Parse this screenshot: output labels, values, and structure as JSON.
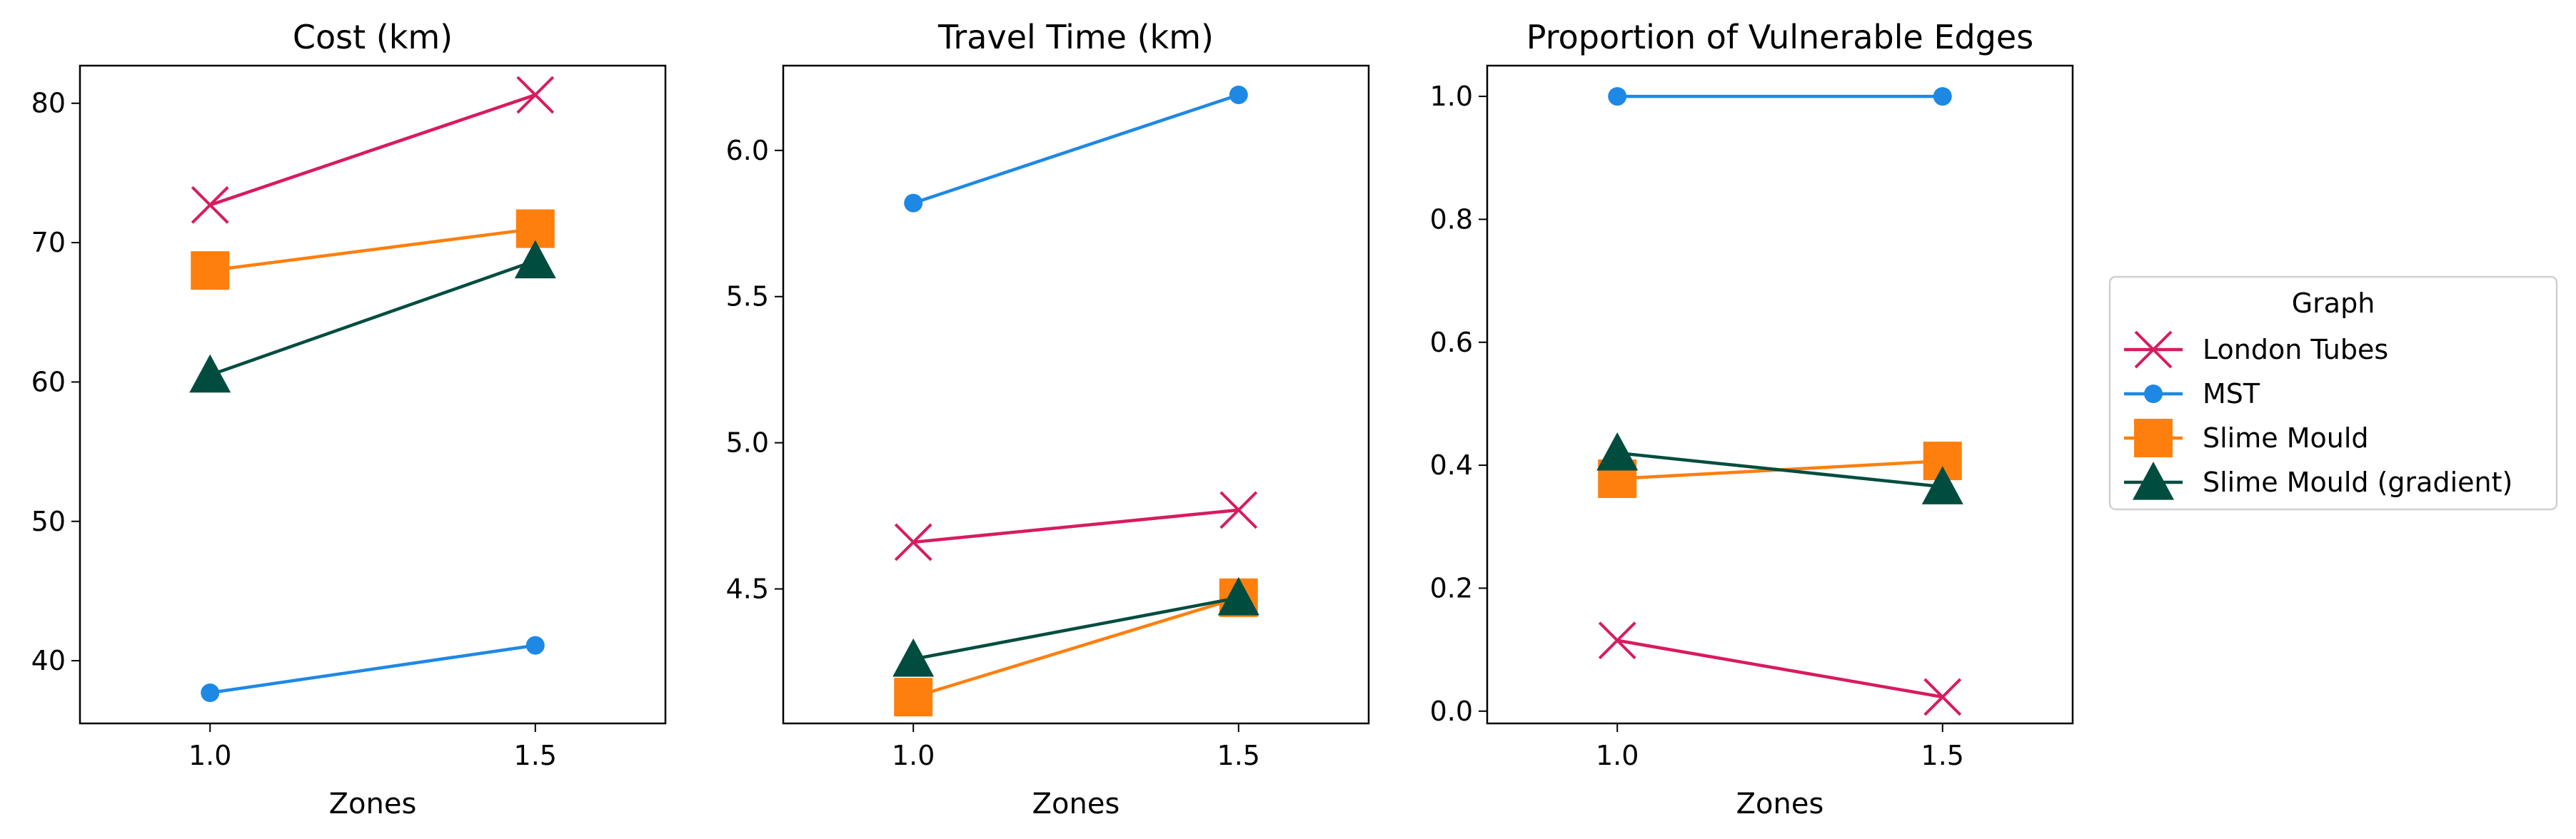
{
  "figure": {
    "legend": {
      "title": "Graph",
      "placement": "right"
    }
  },
  "series_styles": [
    {
      "name": "London Tubes",
      "color": "#d81b60",
      "marker": "x"
    },
    {
      "name": "MST",
      "color": "#1e88e5",
      "marker": "circle"
    },
    {
      "name": "Slime Mould",
      "color": "#ff7f0e",
      "marker": "square"
    },
    {
      "name": "Slime Mould (gradient)",
      "color": "#004d40",
      "marker": "triangle"
    }
  ],
  "chart_data": [
    {
      "type": "line",
      "title": "Cost (km)",
      "xlabel": "Zones",
      "ylabel": "",
      "x": [
        1.0,
        1.5
      ],
      "x_tick_labels": [
        "1.0",
        "1.5"
      ],
      "xlim": [
        0.8,
        1.7
      ],
      "ylim": [
        35.5,
        82.7
      ],
      "y_ticks": [
        40,
        50,
        60,
        70,
        80
      ],
      "y_tick_labels": [
        "40",
        "50",
        "60",
        "70",
        "80"
      ],
      "grid": false,
      "series": [
        {
          "name": "London Tubes",
          "values": [
            72.7,
            80.6
          ]
        },
        {
          "name": "MST",
          "values": [
            37.7,
            41.1
          ]
        },
        {
          "name": "Slime Mould",
          "values": [
            68.0,
            71.0
          ]
        },
        {
          "name": "Slime Mould (gradient)",
          "values": [
            60.5,
            68.7
          ]
        }
      ]
    },
    {
      "type": "line",
      "title": "Travel Time (km)",
      "xlabel": "Zones",
      "ylabel": "",
      "x": [
        1.0,
        1.5
      ],
      "x_tick_labels": [
        "1.0",
        "1.5"
      ],
      "xlim": [
        0.8,
        1.7
      ],
      "ylim": [
        4.04,
        6.29
      ],
      "y_ticks": [
        4.5,
        5.0,
        5.5,
        6.0
      ],
      "y_tick_labels": [
        "4.5",
        "5.0",
        "5.5",
        "6.0"
      ],
      "grid": false,
      "series": [
        {
          "name": "London Tubes",
          "values": [
            4.66,
            4.77
          ]
        },
        {
          "name": "MST",
          "values": [
            5.82,
            6.19
          ]
        },
        {
          "name": "Slime Mould",
          "values": [
            4.13,
            4.47
          ]
        },
        {
          "name": "Slime Mould (gradient)",
          "values": [
            4.26,
            4.47
          ]
        }
      ]
    },
    {
      "type": "line",
      "title": "Proportion of Vulnerable Edges",
      "xlabel": "Zones",
      "ylabel": "",
      "x": [
        1.0,
        1.5
      ],
      "x_tick_labels": [
        "1.0",
        "1.5"
      ],
      "xlim": [
        0.8,
        1.7
      ],
      "ylim": [
        -0.02,
        1.05
      ],
      "y_ticks": [
        0.0,
        0.2,
        0.4,
        0.6,
        0.8,
        1.0
      ],
      "y_tick_labels": [
        "0.0",
        "0.2",
        "0.4",
        "0.6",
        "0.8",
        "1.0"
      ],
      "grid": false,
      "series": [
        {
          "name": "London Tubes",
          "values": [
            0.115,
            0.023
          ]
        },
        {
          "name": "MST",
          "values": [
            1.0,
            1.0
          ]
        },
        {
          "name": "Slime Mould",
          "values": [
            0.378,
            0.407
          ]
        },
        {
          "name": "Slime Mould (gradient)",
          "values": [
            0.42,
            0.365
          ]
        }
      ]
    }
  ]
}
